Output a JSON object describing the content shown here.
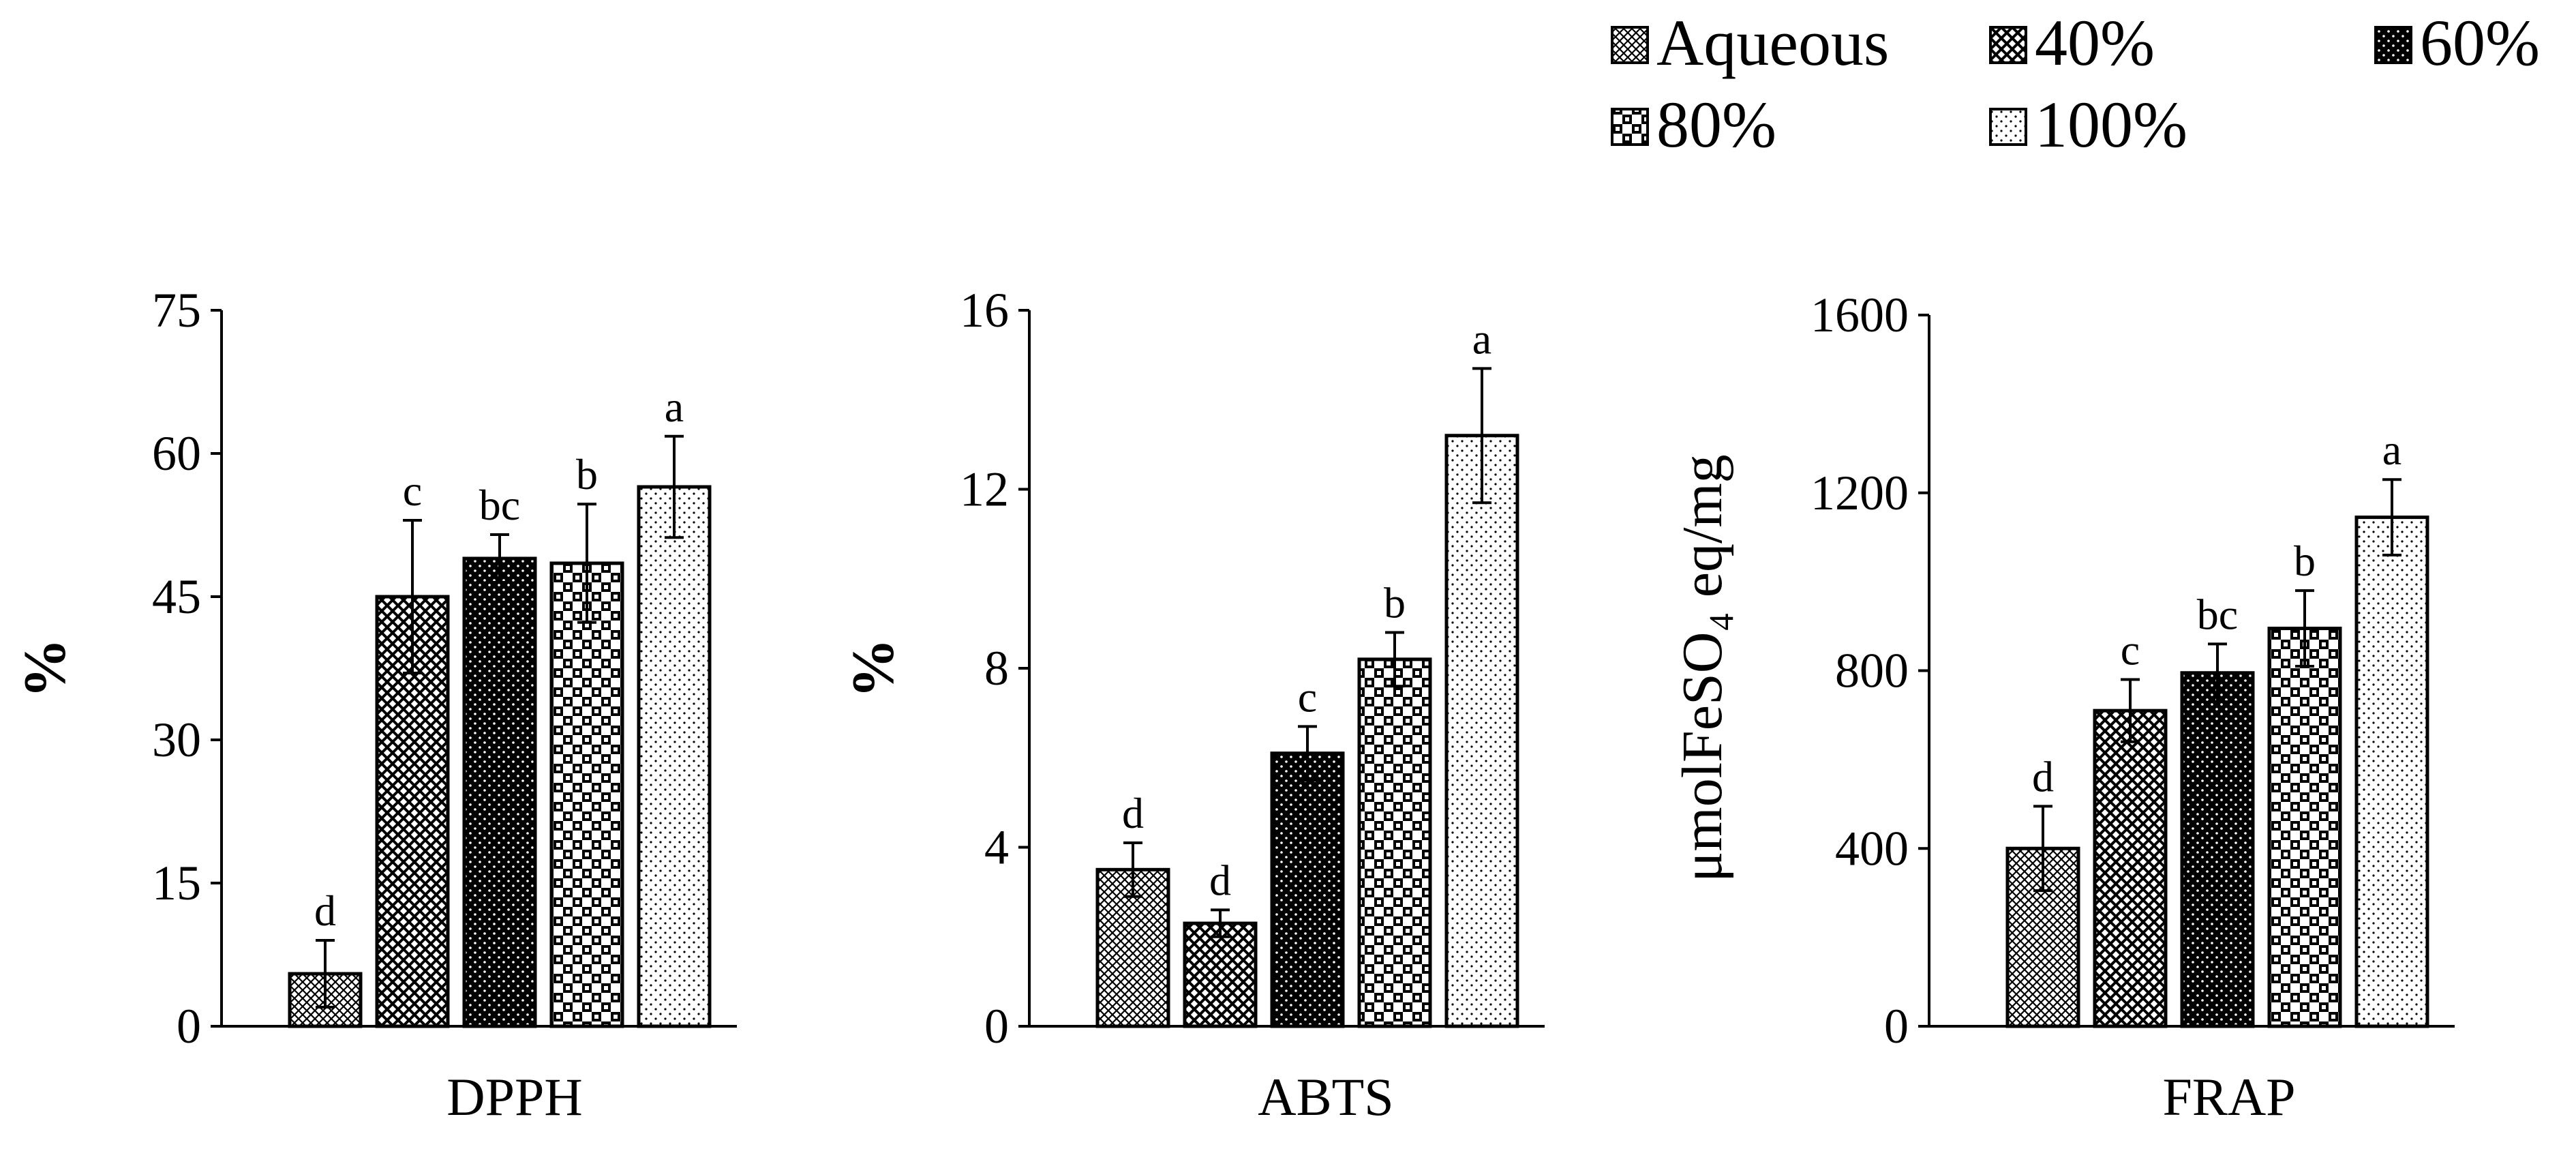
{
  "colors": {
    "ink": "#000000",
    "background": "#ffffff"
  },
  "legend": {
    "items": [
      {
        "label": "Aqueous",
        "pattern": "aqueous"
      },
      {
        "label": "40%",
        "pattern": "p40"
      },
      {
        "label": "60%",
        "pattern": "p60"
      },
      {
        "label": "80%",
        "pattern": "p80"
      },
      {
        "label": "100%",
        "pattern": "p100"
      }
    ]
  },
  "chart_data": [
    {
      "type": "bar",
      "xlabel": "DPPH",
      "ylabel": "%",
      "ylim": [
        0,
        75
      ],
      "yticks": [
        "0",
        "15",
        "30",
        "45",
        "60",
        "75"
      ],
      "categories": [
        "Aqueous",
        "40%",
        "60%",
        "80%",
        "100%"
      ],
      "values": [
        5.5,
        45,
        49,
        48.5,
        56.5
      ],
      "errors": [
        3.5,
        8,
        2.5,
        6.2,
        5.3
      ],
      "significance": [
        "d",
        "c",
        "bc",
        "b",
        "a"
      ],
      "grid": false
    },
    {
      "type": "bar",
      "xlabel": "ABTS",
      "ylabel": "%",
      "ylim": [
        0,
        16
      ],
      "yticks": [
        "0",
        "4",
        "8",
        "12",
        "16"
      ],
      "categories": [
        "Aqueous",
        "40%",
        "60%",
        "80%",
        "100%"
      ],
      "values": [
        3.5,
        2.3,
        6.1,
        8.2,
        13.2
      ],
      "errors": [
        0.6,
        0.3,
        0.6,
        0.6,
        1.5
      ],
      "significance": [
        "d",
        "d",
        "c",
        "b",
        "a"
      ],
      "grid": false
    },
    {
      "type": "bar",
      "xlabel": "FRAP",
      "ylabel": "μmolFeSO₄ eq/mg",
      "ylim": [
        0,
        1600
      ],
      "yticks": [
        "0",
        "400",
        "800",
        "1200",
        "1600"
      ],
      "categories": [
        "Aqueous",
        "40%",
        "60%",
        "80%",
        "100%"
      ],
      "values": [
        400,
        710,
        795,
        895,
        1145
      ],
      "errors": [
        95,
        70,
        65,
        85,
        85
      ],
      "significance": [
        "d",
        "c",
        "bc",
        "b",
        "a"
      ],
      "grid": false
    }
  ]
}
